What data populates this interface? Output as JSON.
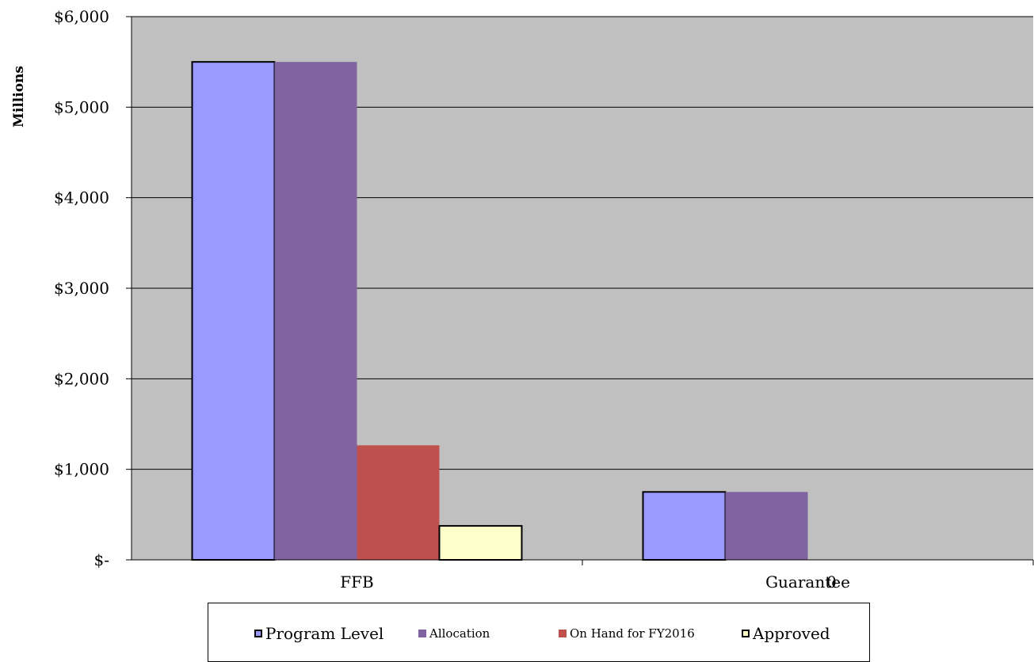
{
  "chart_data": {
    "type": "bar",
    "ylabel": "Millions",
    "ylim": [
      0,
      6000
    ],
    "yticks": [
      0,
      1000,
      2000,
      3000,
      4000,
      5000,
      6000
    ],
    "ytick_labels": [
      "$-",
      "$1,000",
      "$2,000",
      "$3,000",
      "$4,000",
      "$5,000",
      "$6,000"
    ],
    "categories": [
      "FFB",
      "Guarantee"
    ],
    "stray_label": "0",
    "grid": true,
    "legend_position": "bottom",
    "series": [
      {
        "name": "Program Level",
        "values": [
          5500,
          750
        ],
        "color": "#9999ff"
      },
      {
        "name": "Allocation",
        "values": [
          5500,
          750
        ],
        "color": "#8064a2"
      },
      {
        "name": "On Hand for FY2016",
        "values": [
          1265,
          0
        ],
        "color": "#c0504d"
      },
      {
        "name": "Approved",
        "values": [
          375,
          0
        ],
        "color": "#ffffcc"
      }
    ],
    "plot_background": "#c0c0c0"
  }
}
